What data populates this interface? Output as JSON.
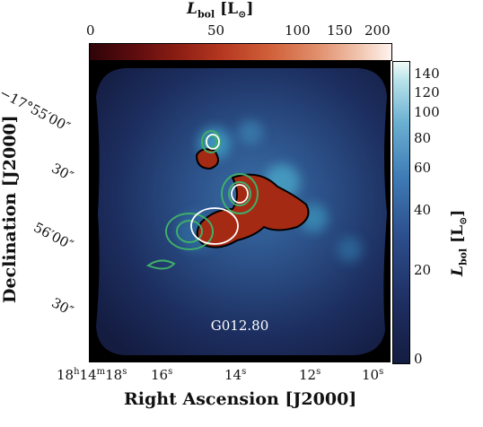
{
  "top_colorbar": {
    "title": "L_bol [L_⊙]",
    "ticks": [
      "0",
      "50",
      "100",
      "150",
      "200"
    ]
  },
  "right_colorbar": {
    "title": "L_bol [L_⊙]",
    "ticks": [
      "140",
      "120",
      "100",
      "80",
      "60",
      "40",
      "20",
      "0"
    ]
  },
  "axes": {
    "xlabel": "Right Ascension [J2000]",
    "ylabel": "Declination [J2000]",
    "x_ticks": [
      "18h14m18s",
      "16s",
      "14s",
      "12s",
      "10s"
    ],
    "y_ticks": [
      "−17°55′00″",
      "30″",
      "56′00″",
      "30″"
    ]
  },
  "map": {
    "source_label": "G012.80"
  },
  "colors": {
    "background_map": "#1a2550",
    "hot_colormap_peak": "#a52a14",
    "green_contour": "#3fae6a",
    "white_contour": "#ffffff"
  }
}
